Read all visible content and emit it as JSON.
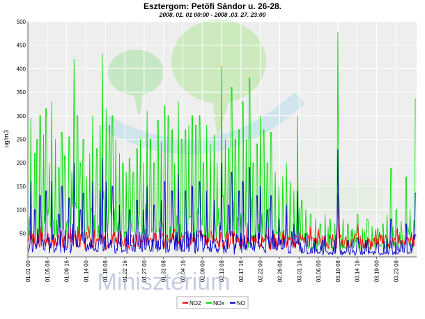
{
  "chart_data": {
    "type": "line",
    "title": "Esztergom: Petőfi Sándor u. 26-28.",
    "subtitle": "2008. 01. 01 00:00 - 2008 .03. 27. 23:00",
    "xlabel": "",
    "ylabel": "ug/m3",
    "ylim": [
      0,
      500
    ],
    "yticks": [
      50,
      100,
      150,
      200,
      250,
      300,
      350,
      400,
      450,
      500
    ],
    "x_range": [
      "2008-01-01 00:00",
      "2008-03-27 23:00"
    ],
    "x_tick_labels": [
      "01.01 00",
      "01.05 08",
      "01.09 16",
      "01.14 00",
      "01.18 08",
      "01.22 16",
      "01.27 00",
      "01.31 08",
      "02.04 16",
      "02.09 00",
      "02.13 08",
      "02.17 16",
      "02.22 00",
      "02.26 08",
      "03.01 16",
      "03.06 00",
      "03.10 08",
      "03.14 16",
      "03.19 00",
      "03.23 08"
    ],
    "grid": true,
    "legend_position": "bottom",
    "series": [
      {
        "name": "NO2",
        "color": "#ff0000",
        "peaks": [
          [
            "01-01 12",
            60
          ],
          [
            "01-02 08",
            55
          ],
          [
            "01-04 04",
            52
          ],
          [
            "01-06 18",
            48
          ],
          [
            "01-08 10",
            55
          ],
          [
            "01-10 20",
            50
          ],
          [
            "01-13 06",
            52
          ],
          [
            "01-15 20",
            58
          ],
          [
            "01-17 12",
            50
          ],
          [
            "01-20 06",
            45
          ],
          [
            "01-23 08",
            42
          ],
          [
            "01-26 20",
            45
          ],
          [
            "01-29 12",
            48
          ],
          [
            "02-02 08",
            50
          ],
          [
            "02-05 06",
            52
          ],
          [
            "02-08 10",
            55
          ],
          [
            "02-10 20",
            50
          ],
          [
            "02-13 08",
            48
          ],
          [
            "02-16 06",
            45
          ],
          [
            "02-19 20",
            42
          ],
          [
            "02-23 06",
            40
          ],
          [
            "02-27 08",
            38
          ],
          [
            "03-02 06",
            35
          ],
          [
            "03-06 12",
            32
          ],
          [
            "03-10 08",
            135
          ],
          [
            "03-13 20",
            30
          ],
          [
            "03-17 06",
            28
          ],
          [
            "03-20 12",
            28
          ],
          [
            "03-24 06",
            30
          ],
          [
            "03-27 20",
            45
          ]
        ]
      },
      {
        "name": "NOx",
        "color": "#00dd00",
        "peaks": [
          [
            "01-01 16",
            295
          ],
          [
            "01-02 14",
            220
          ],
          [
            "01-03 02",
            250
          ],
          [
            "01-03 18",
            300
          ],
          [
            "01-04 12",
            260
          ],
          [
            "01-05 02",
            315
          ],
          [
            "01-05 20",
            200
          ],
          [
            "01-06 08",
            330
          ],
          [
            "01-07 04",
            250
          ],
          [
            "01-07 22",
            190
          ],
          [
            "01-08 14",
            265
          ],
          [
            "01-09 06",
            215
          ],
          [
            "01-10 06",
            255
          ],
          [
            "01-10 20",
            180
          ],
          [
            "01-11 08",
            420
          ],
          [
            "01-12 02",
            300
          ],
          [
            "01-12 18",
            200
          ],
          [
            "01-13 10",
            250
          ],
          [
            "01-14 04",
            170
          ],
          [
            "01-14 20",
            220
          ],
          [
            "01-15 12",
            300
          ],
          [
            "01-16 10",
            230
          ],
          [
            "01-17 04",
            280
          ],
          [
            "01-17 16",
            432
          ],
          [
            "01-18 12",
            315
          ],
          [
            "01-19 06",
            280
          ],
          [
            "01-19 22",
            300
          ],
          [
            "01-20 16",
            250
          ],
          [
            "01-21 12",
            220
          ],
          [
            "01-22 06",
            200
          ],
          [
            "01-23 00",
            180
          ],
          [
            "01-23 18",
            210
          ],
          [
            "01-24 14",
            180
          ],
          [
            "01-25 10",
            230
          ],
          [
            "01-26 04",
            250
          ],
          [
            "01-26 20",
            200
          ],
          [
            "01-27 16",
            310
          ],
          [
            "01-28 10",
            250
          ],
          [
            "01-29 06",
            200
          ],
          [
            "01-30 02",
            290
          ],
          [
            "01-30 20",
            245
          ],
          [
            "01-31 14",
            320
          ],
          [
            "02-01 10",
            300
          ],
          [
            "02-02 06",
            270
          ],
          [
            "02-02 20",
            200
          ],
          [
            "02-03 16",
            330
          ],
          [
            "02-04 10",
            250
          ],
          [
            "02-05 06",
            270
          ],
          [
            "02-06 00",
            280
          ],
          [
            "02-06 18",
            300
          ],
          [
            "02-07 14",
            280
          ],
          [
            "02-08 10",
            300
          ],
          [
            "02-09 06",
            200
          ],
          [
            "02-10 00",
            280
          ],
          [
            "02-10 20",
            240
          ],
          [
            "02-11 16",
            260
          ],
          [
            "02-12 08",
            200
          ],
          [
            "02-13 08",
            405
          ],
          [
            "02-14 04",
            250
          ],
          [
            "02-14 22",
            230
          ],
          [
            "02-15 14",
            360
          ],
          [
            "02-16 10",
            250
          ],
          [
            "02-17 06",
            270
          ],
          [
            "02-18 02",
            330
          ],
          [
            "02-18 20",
            250
          ],
          [
            "02-19 14",
            380
          ],
          [
            "02-20 10",
            200
          ],
          [
            "02-21 06",
            240
          ],
          [
            "02-22 00",
            300
          ],
          [
            "02-22 18",
            270
          ],
          [
            "02-23 14",
            200
          ],
          [
            "02-24 10",
            265
          ],
          [
            "02-25 08",
            180
          ],
          [
            "02-26 04",
            150
          ],
          [
            "02-27 00",
            170
          ],
          [
            "02-27 20",
            200
          ],
          [
            "02-28 16",
            160
          ],
          [
            "02-29 12",
            140
          ],
          [
            "03-01 08",
            300
          ],
          [
            "03-02 06",
            120
          ],
          [
            "03-03 04",
            100
          ],
          [
            "03-04 06",
            90
          ],
          [
            "03-05 08",
            80
          ],
          [
            "03-06 10",
            70
          ],
          [
            "03-07 12",
            90
          ],
          [
            "03-08 14",
            80
          ],
          [
            "03-09 16",
            70
          ],
          [
            "03-10 08",
            477
          ],
          [
            "03-11 12",
            80
          ],
          [
            "03-12 14",
            70
          ],
          [
            "03-13 16",
            60
          ],
          [
            "03-14 18",
            90
          ],
          [
            "03-15 20",
            60
          ],
          [
            "03-16 22",
            80
          ],
          [
            "03-18 00",
            65
          ],
          [
            "03-19 06",
            60
          ],
          [
            "03-20 10",
            70
          ],
          [
            "03-21 08",
            90
          ],
          [
            "03-22 06",
            188
          ],
          [
            "03-23 10",
            100
          ],
          [
            "03-24 12",
            75
          ],
          [
            "03-25 14",
            170
          ],
          [
            "03-26 12",
            100
          ],
          [
            "03-27 18",
            335
          ]
        ]
      },
      {
        "name": "NO",
        "color": "#0000cc",
        "peaks": [
          [
            "01-01 16",
            160
          ],
          [
            "01-02 14",
            100
          ],
          [
            "01-03 18",
            130
          ],
          [
            "01-05 02",
            140
          ],
          [
            "01-06 08",
            160
          ],
          [
            "01-07 22",
            90
          ],
          [
            "01-08 14",
            150
          ],
          [
            "01-10 06",
            125
          ],
          [
            "01-11 08",
            200
          ],
          [
            "01-12 18",
            100
          ],
          [
            "01-13 10",
            135
          ],
          [
            "01-15 12",
            160
          ],
          [
            "01-17 04",
            140
          ],
          [
            "01-17 16",
            210
          ],
          [
            "01-18 12",
            160
          ],
          [
            "01-19 22",
            150
          ],
          [
            "01-21 12",
            110
          ],
          [
            "01-23 18",
            100
          ],
          [
            "01-25 10",
            120
          ],
          [
            "01-26 20",
            100
          ],
          [
            "01-27 16",
            150
          ],
          [
            "01-29 06",
            110
          ],
          [
            "01-30 20",
            120
          ],
          [
            "01-31 14",
            160
          ],
          [
            "02-02 06",
            140
          ],
          [
            "02-03 16",
            175
          ],
          [
            "02-05 06",
            140
          ],
          [
            "02-06 18",
            150
          ],
          [
            "02-08 10",
            160
          ],
          [
            "02-10 00",
            140
          ],
          [
            "02-11 16",
            120
          ],
          [
            "02-13 08",
            200
          ],
          [
            "02-14 22",
            110
          ],
          [
            "02-15 14",
            180
          ],
          [
            "02-17 06",
            140
          ],
          [
            "02-18 02",
            160
          ],
          [
            "02-19 14",
            190
          ],
          [
            "02-21 06",
            130
          ],
          [
            "02-22 00",
            150
          ],
          [
            "02-23 14",
            100
          ],
          [
            "02-24 10",
            130
          ],
          [
            "02-26 04",
            80
          ],
          [
            "02-27 20",
            110
          ],
          [
            "02-29 12",
            70
          ],
          [
            "03-01 08",
            140
          ],
          [
            "03-03 04",
            50
          ],
          [
            "03-05 08",
            40
          ],
          [
            "03-07 12",
            45
          ],
          [
            "03-09 16",
            35
          ],
          [
            "03-10 08",
            228
          ],
          [
            "03-12 14",
            35
          ],
          [
            "03-14 18",
            40
          ],
          [
            "03-16 22",
            35
          ],
          [
            "03-19 06",
            30
          ],
          [
            "03-21 08",
            40
          ],
          [
            "03-22 06",
            80
          ],
          [
            "03-24 12",
            35
          ],
          [
            "03-25 14",
            70
          ],
          [
            "03-27 18",
            135
          ]
        ]
      }
    ]
  },
  "watermark": {
    "text": "Minisztérium"
  }
}
